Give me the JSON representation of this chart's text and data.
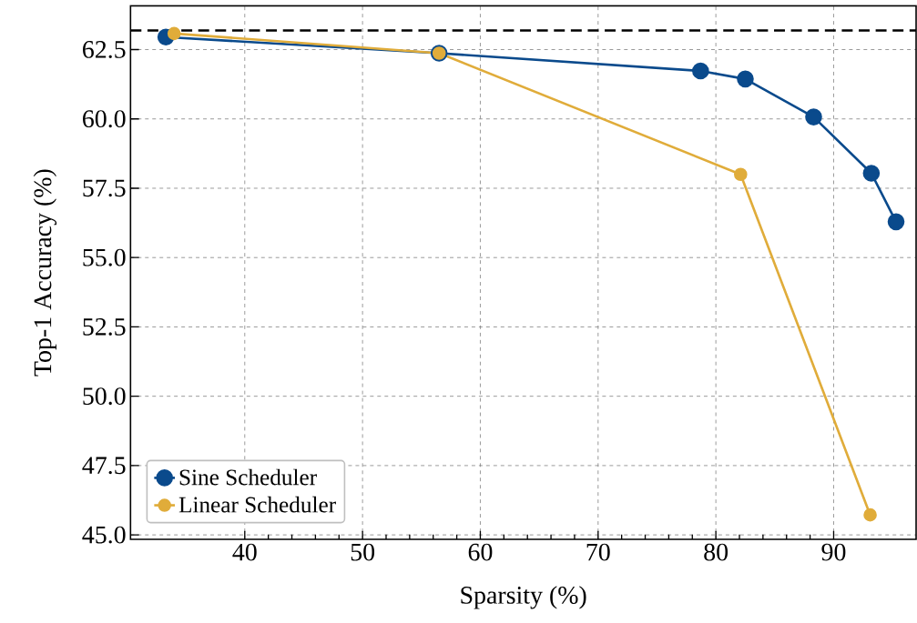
{
  "chart_data": {
    "type": "line",
    "xlabel": "Sparsity (%)",
    "ylabel": "Top-1 Accuracy (%)",
    "xlim": [
      30.3,
      97
    ],
    "ylim": [
      44.84,
      64.08
    ],
    "xticks": [
      40,
      50,
      60,
      70,
      80,
      90
    ],
    "yticks": [
      {
        "value": 45,
        "label": "45.0"
      },
      {
        "value": 47.5,
        "label": "47.5"
      },
      {
        "value": 50,
        "label": "50.0"
      },
      {
        "value": 52.5,
        "label": "52.5"
      },
      {
        "value": 55,
        "label": "55.0"
      },
      {
        "value": 57.5,
        "label": "57.5"
      },
      {
        "value": 60,
        "label": "60.0"
      },
      {
        "value": 62.5,
        "label": "62.5"
      }
    ],
    "grid": true,
    "legend": "bottom left",
    "marker": "circle",
    "line_style": "solid",
    "ref_lines": [
      {
        "axis": "y",
        "value": 63.19,
        "color": "#000000",
        "line_style": "dashed"
      }
    ],
    "series": [
      {
        "name": "Sine Scheduler",
        "color": "#0a4a8c",
        "x": [
          33.3,
          56.5,
          78.7,
          82.5,
          88.3,
          93.2,
          95.3
        ],
        "values": [
          62.95,
          62.37,
          61.73,
          61.44,
          60.07,
          58.04,
          56.29
        ]
      },
      {
        "name": "Linear Scheduler",
        "color": "#e0ac3a",
        "x": [
          34.0,
          56.5,
          82.1,
          93.1
        ],
        "values": [
          63.08,
          62.37,
          58.0,
          45.72
        ]
      }
    ]
  }
}
